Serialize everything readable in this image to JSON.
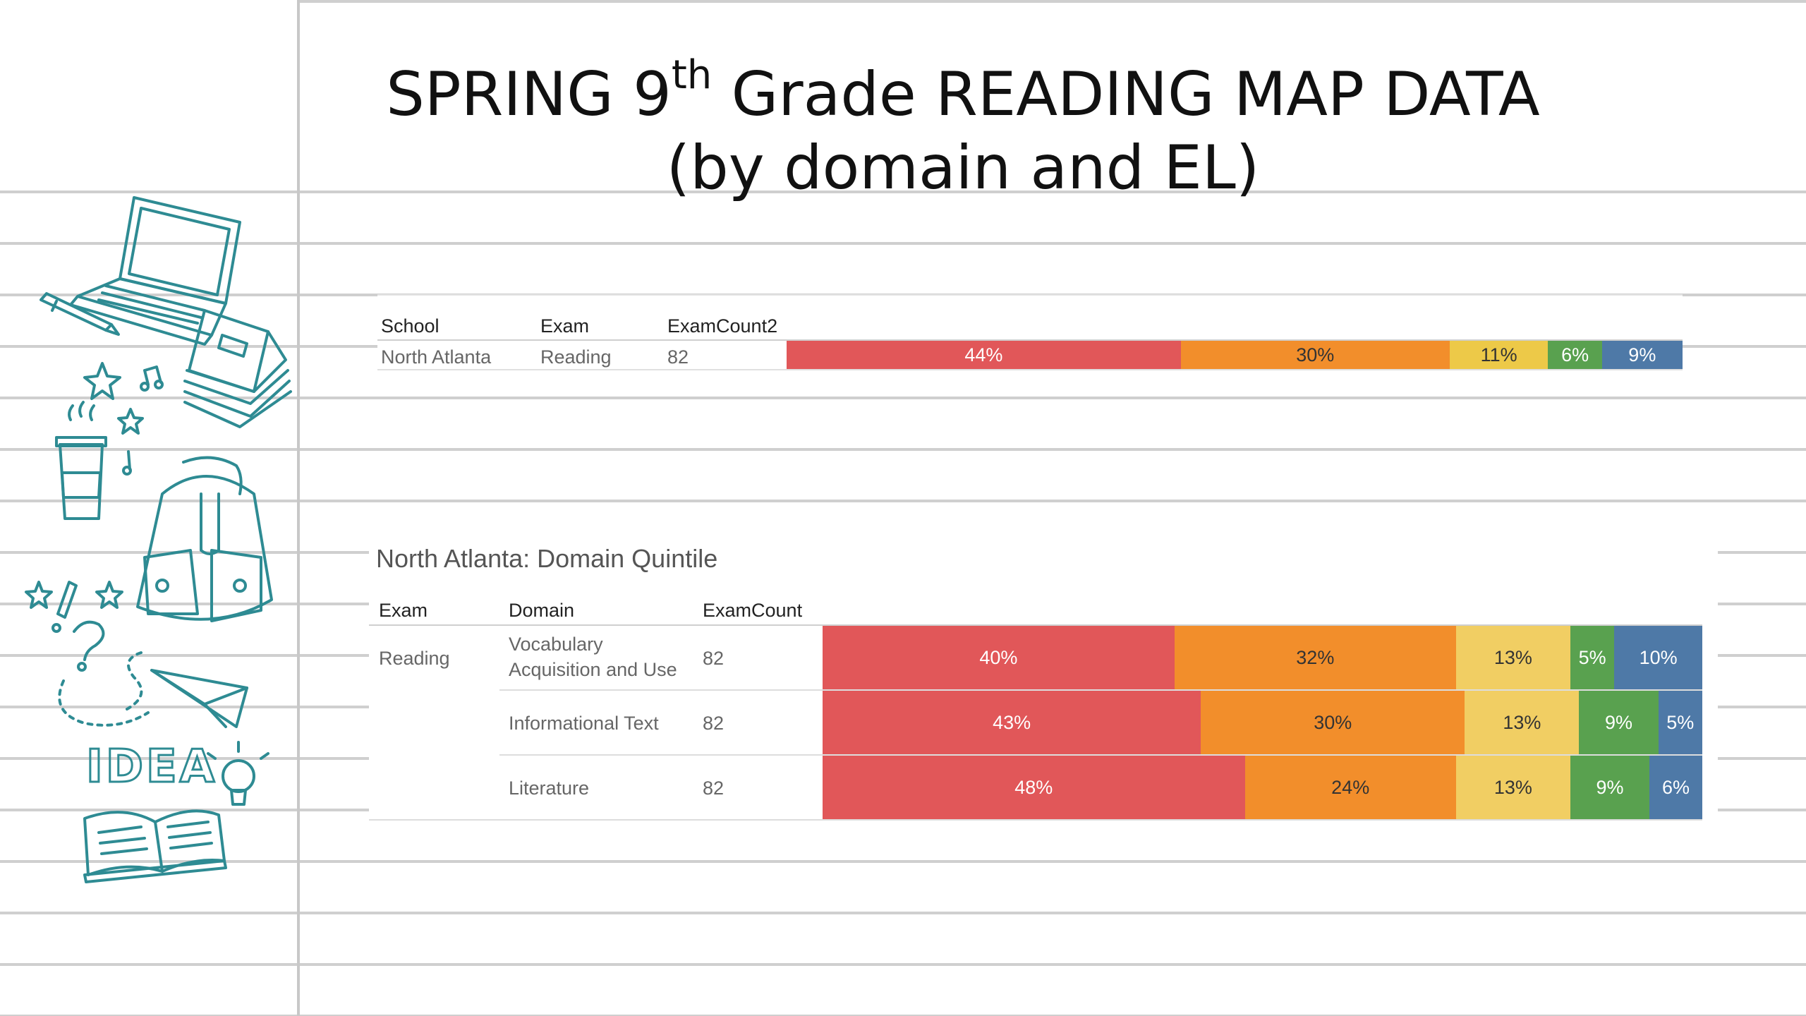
{
  "title": {
    "pre": "SPRING 9",
    "sup": "th",
    "post": " Grade READING MAP DATA (by domain and EL)"
  },
  "colors": {
    "q1": "#e15759",
    "q2": "#f28e2b",
    "q3": "#edc948",
    "q3_light": "#f1ce63",
    "q4": "#59a14f",
    "q5": "#4e79a7",
    "doodle": "#2e8b93"
  },
  "chart_data": [
    {
      "type": "bar",
      "orientation": "horizontal-stacked-100",
      "headers": [
        "School",
        "Exam",
        "ExamCount2"
      ],
      "rows": [
        {
          "school": "North Atlanta",
          "exam": "Reading",
          "count": "82",
          "values": [
            44,
            30,
            11,
            6,
            9
          ],
          "labels": [
            "44%",
            "30%",
            "11%",
            "6%",
            "9%"
          ]
        }
      ]
    },
    {
      "type": "bar",
      "orientation": "horizontal-stacked-100",
      "title": "North Atlanta: Domain Quintile",
      "headers": [
        "Exam",
        "Domain",
        "ExamCount"
      ],
      "exam": "Reading",
      "rows": [
        {
          "domain_lines": [
            "Vocabulary",
            "Acquisition and Use"
          ],
          "count": "82",
          "values": [
            40,
            32,
            13,
            5,
            10
          ],
          "labels": [
            "40%",
            "32%",
            "13%",
            "5%",
            "10%"
          ]
        },
        {
          "domain_lines": [
            "Informational Text"
          ],
          "count": "82",
          "values": [
            43,
            30,
            13,
            9,
            5
          ],
          "labels": [
            "43%",
            "30%",
            "13%",
            "9%",
            "5%"
          ]
        },
        {
          "domain_lines": [
            "Literature"
          ],
          "count": "82",
          "values": [
            48,
            24,
            13,
            9,
            6
          ],
          "labels": [
            "48%",
            "24%",
            "13%",
            "9%",
            "6%"
          ]
        }
      ]
    }
  ],
  "doodles": {
    "idea_text": "IDEA",
    "icons": [
      "laptop-icon",
      "pen-icon",
      "books-icon",
      "coffee-cup-icon",
      "backpack-icon",
      "star-icon",
      "music-note-icon",
      "question-mark-icon",
      "exclamation-mark-icon",
      "paper-plane-icon",
      "light-bulb-icon",
      "open-book-icon"
    ]
  }
}
